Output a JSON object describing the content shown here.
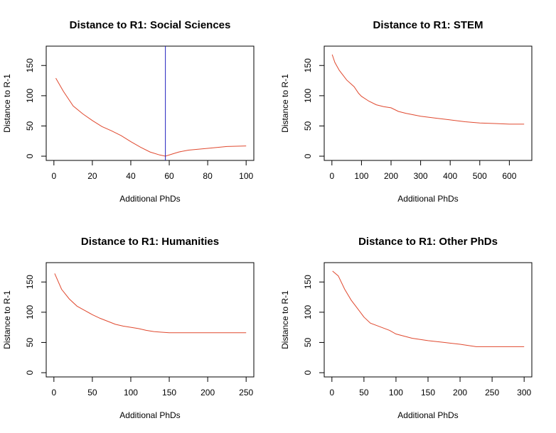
{
  "chart_data": [
    {
      "type": "line",
      "title": "Distance to R1: Social Sciences",
      "xlabel": "Additional PhDs",
      "ylabel": "Distance to R-1",
      "xlim": [
        0,
        100
      ],
      "ylim": [
        0,
        175
      ],
      "xticks": [
        0,
        20,
        40,
        60,
        80,
        100
      ],
      "yticks": [
        0,
        50,
        100,
        150
      ],
      "line_color": "#e0492f",
      "vline": {
        "x": 58,
        "color": "#1f1fbf"
      },
      "series": [
        {
          "x": [
            1,
            5,
            10,
            15,
            20,
            25,
            30,
            35,
            40,
            45,
            50,
            55,
            58,
            62,
            65,
            70,
            80,
            90,
            100
          ],
          "y": [
            129,
            107,
            83,
            70,
            59,
            49,
            42,
            34,
            24,
            15,
            7,
            2,
            0,
            4,
            7,
            10,
            13,
            16,
            17
          ]
        }
      ]
    },
    {
      "type": "line",
      "title": "Distance to R1: STEM",
      "xlabel": "Additional PhDs",
      "ylabel": "Distance to R-1",
      "xlim": [
        0,
        650
      ],
      "ylim": [
        0,
        175
      ],
      "xticks": [
        0,
        100,
        200,
        300,
        400,
        500,
        600
      ],
      "yticks": [
        0,
        50,
        100,
        150
      ],
      "line_color": "#e0492f",
      "series": [
        {
          "x": [
            1,
            10,
            25,
            50,
            75,
            90,
            100,
            125,
            150,
            175,
            200,
            225,
            250,
            300,
            350,
            400,
            450,
            500,
            550,
            600,
            650
          ],
          "y": [
            168,
            155,
            142,
            126,
            115,
            104,
            99,
            91,
            85,
            82,
            80,
            74,
            71,
            66,
            63,
            60,
            57,
            55,
            54,
            53,
            53
          ]
        }
      ]
    },
    {
      "type": "line",
      "title": "Distance to R1: Humanities",
      "xlabel": "Additional PhDs",
      "ylabel": "Distance to R-1",
      "xlim": [
        0,
        250
      ],
      "ylim": [
        0,
        175
      ],
      "xticks": [
        0,
        50,
        100,
        150,
        200,
        250
      ],
      "yticks": [
        0,
        50,
        100,
        150
      ],
      "line_color": "#e0492f",
      "series": [
        {
          "x": [
            1,
            10,
            20,
            30,
            40,
            50,
            60,
            70,
            80,
            90,
            100,
            110,
            120,
            130,
            140,
            150,
            200,
            250
          ],
          "y": [
            164,
            138,
            122,
            110,
            103,
            96,
            90,
            85,
            80,
            77,
            75,
            73,
            70,
            68,
            67,
            66,
            66,
            66
          ]
        }
      ]
    },
    {
      "type": "line",
      "title": "Distance to R1: Other PhDs",
      "xlabel": "Additional PhDs",
      "ylabel": "Distance to R-1",
      "xlim": [
        0,
        300
      ],
      "ylim": [
        0,
        175
      ],
      "xticks": [
        0,
        50,
        100,
        150,
        200,
        250,
        300
      ],
      "yticks": [
        0,
        50,
        100,
        150
      ],
      "line_color": "#e0492f",
      "series": [
        {
          "x": [
            1,
            10,
            20,
            30,
            40,
            50,
            60,
            75,
            90,
            100,
            125,
            150,
            175,
            200,
            225,
            250,
            300
          ],
          "y": [
            168,
            160,
            138,
            120,
            106,
            92,
            82,
            76,
            70,
            64,
            57,
            53,
            50,
            47,
            43,
            43,
            43
          ]
        }
      ]
    }
  ]
}
